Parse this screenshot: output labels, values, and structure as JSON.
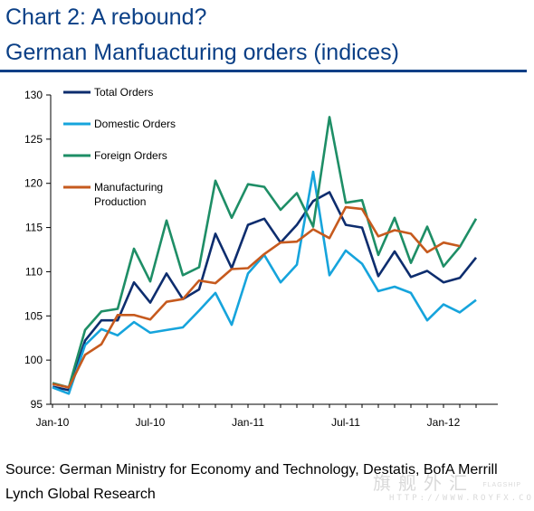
{
  "title_line1": "Chart 2: A rebound?",
  "title_line2": "German Manfuacturing orders (indices)",
  "source": "Source: German Ministry for Economy and Technology, Destatis, BofA Merrill Lynch Global Research",
  "watermark": {
    "logo": "旗舰外汇",
    "sub": "FLAGSHIP",
    "url": "HTTP://WWW.ROYFX.COM"
  },
  "chart_data": {
    "type": "line",
    "x_tick_labels": [
      "Jan-10",
      "Jul-10",
      "Jan-11",
      "Jul-11",
      "Jan-12"
    ],
    "x": [
      "Jan-10",
      "Feb-10",
      "Mar-10",
      "Apr-10",
      "May-10",
      "Jun-10",
      "Jul-10",
      "Aug-10",
      "Sep-10",
      "Oct-10",
      "Nov-10",
      "Dec-10",
      "Jan-11",
      "Feb-11",
      "Mar-11",
      "Apr-11",
      "May-11",
      "Jun-11",
      "Jul-11",
      "Aug-11",
      "Sep-11",
      "Oct-11",
      "Nov-11",
      "Dec-11",
      "Jan-12",
      "Feb-12",
      "Mar-12"
    ],
    "ylim": [
      95,
      130
    ],
    "y_ticks": [
      95,
      100,
      105,
      110,
      115,
      120,
      125,
      130
    ],
    "grid": false,
    "legend_position": "top-left",
    "series": [
      {
        "name": "Total Orders",
        "color": "#0d2d6e",
        "values": [
          97.0,
          96.6,
          102.2,
          104.5,
          104.5,
          108.8,
          106.5,
          109.8,
          106.9,
          108.0,
          114.3,
          110.4,
          115.3,
          116.0,
          113.3,
          115.3,
          118.0,
          119.0,
          115.3,
          115.0,
          109.5,
          112.3,
          109.4,
          110.1,
          108.8,
          109.3,
          111.6
        ]
      },
      {
        "name": "Domestic Orders",
        "color": "#16a4dc",
        "values": [
          96.9,
          96.2,
          101.7,
          103.5,
          102.8,
          104.3,
          103.1,
          103.4,
          103.7,
          105.6,
          107.6,
          104.0,
          109.8,
          111.9,
          108.8,
          110.8,
          121.3,
          109.6,
          112.4,
          110.9,
          107.8,
          108.3,
          107.6,
          104.5,
          106.3,
          105.4,
          106.8
        ]
      },
      {
        "name": "Foreign Orders",
        "color": "#1e8e66",
        "values": [
          97.4,
          96.9,
          103.4,
          105.5,
          105.8,
          112.6,
          108.9,
          115.8,
          109.6,
          110.5,
          120.3,
          116.1,
          119.9,
          119.6,
          117.0,
          118.9,
          115.1,
          127.5,
          117.8,
          118.1,
          111.9,
          116.1,
          111.0,
          115.1,
          110.6,
          112.8,
          116.0
        ]
      },
      {
        "name": "Manufacturing Production",
        "label_lines": [
          "Manufacturing",
          "Production"
        ],
        "color": "#c65a1e",
        "values": [
          97.3,
          96.9,
          100.6,
          101.8,
          105.1,
          105.1,
          104.6,
          106.6,
          106.9,
          109.0,
          108.7,
          110.3,
          110.4,
          112.0,
          113.3,
          113.4,
          114.8,
          113.8,
          117.3,
          117.1,
          114.0,
          114.7,
          114.3,
          112.2,
          113.3,
          112.9,
          null
        ]
      }
    ]
  }
}
